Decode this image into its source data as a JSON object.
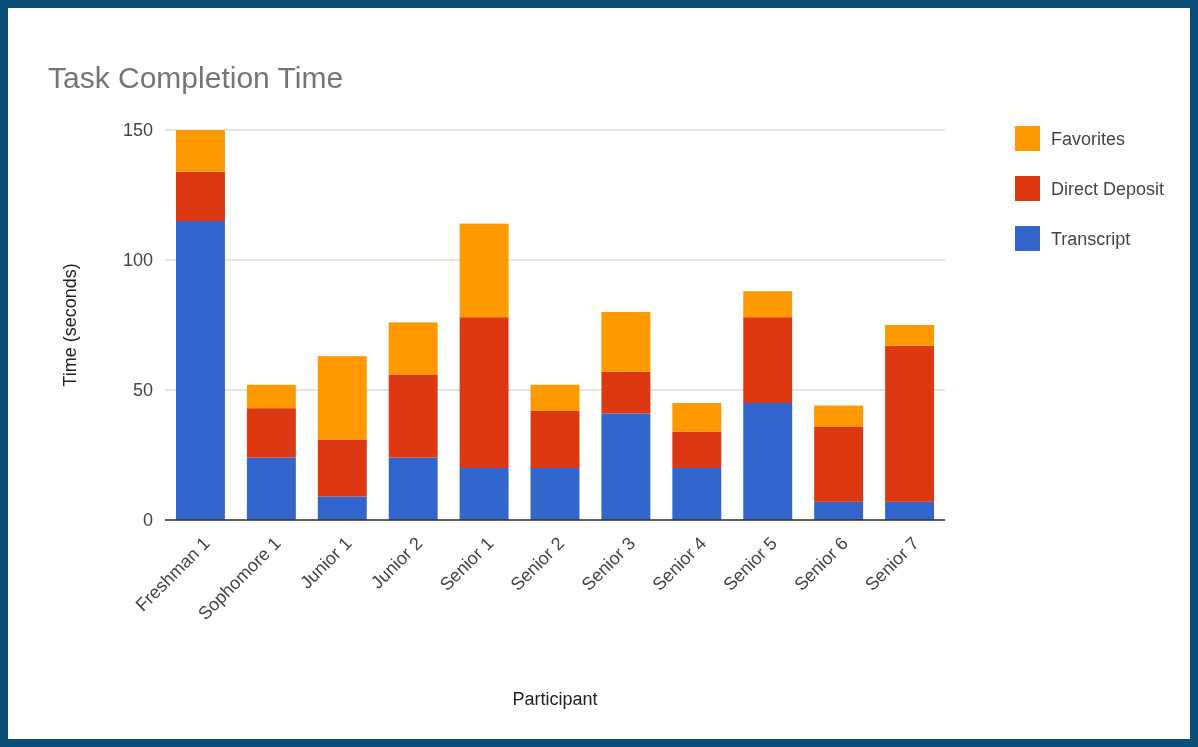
{
  "chart_data": {
    "type": "bar",
    "title": "Task Completion Time",
    "xlabel": "Participant",
    "ylabel": "Time (seconds)",
    "categories": [
      "Freshman 1",
      "Sophomore 1",
      "Junior 1",
      "Junior 2",
      "Senior 1",
      "Senior 2",
      "Senior 3",
      "Senior 4",
      "Senior 5",
      "Senior 6",
      "Senior 7"
    ],
    "stacked": true,
    "series": [
      {
        "name": "Transcript",
        "color": "#3366cc",
        "values": [
          115,
          24,
          9,
          24,
          20,
          20,
          41,
          20,
          45,
          7,
          7
        ]
      },
      {
        "name": "Direct Deposit",
        "color": "#dc3912",
        "values": [
          19,
          19,
          22,
          32,
          58,
          22,
          16,
          14,
          33,
          29,
          60
        ]
      },
      {
        "name": "Favorites",
        "color": "#ff9900",
        "values": [
          16,
          9,
          32,
          20,
          36,
          10,
          23,
          11,
          10,
          8,
          8
        ]
      }
    ],
    "ylim": [
      0,
      150
    ],
    "yticks": [
      0,
      50,
      100,
      150
    ],
    "grid": "y",
    "legend": "right"
  }
}
